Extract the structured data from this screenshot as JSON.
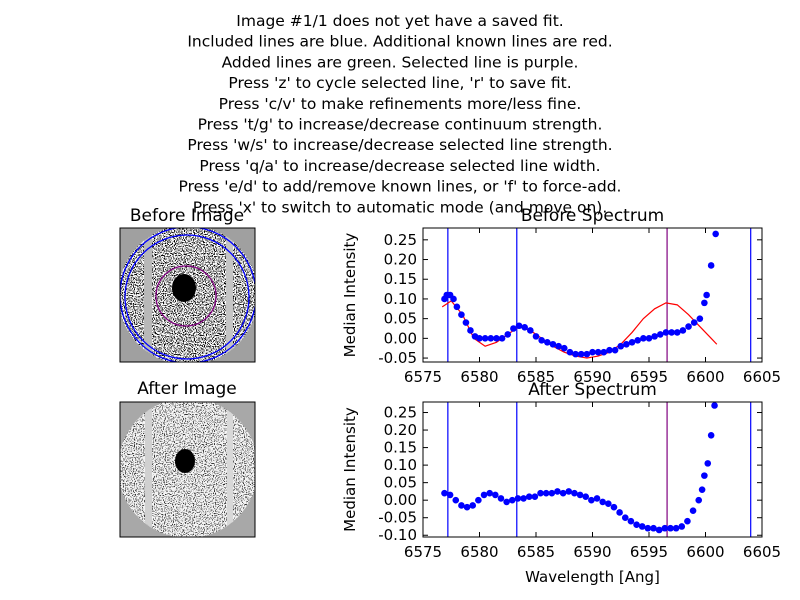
{
  "instructions": [
    "Image #1/1 does not yet have a saved fit.",
    "Included lines are blue. Additional known lines are red.",
    "Added lines are green. Selected line is purple.",
    "Press 'z' to cycle selected line, 'r' to save fit.",
    "Press 'c/v' to make refinements more/less fine.",
    "Press 't/g' to increase/decrease continuum strength.",
    "Press 'w/s' to increase/decrease selected line strength.",
    "Press 'q/a' to increase/decrease selected line width.",
    "Press 'e/d' to add/remove known lines, or 'f' to force-add.",
    "Press 'x' to switch to automatic mode (and move on)."
  ],
  "images": [
    {
      "title": "Before Image"
    },
    {
      "title": "After Image"
    }
  ],
  "chart_data": [
    {
      "type": "scatter",
      "title": "Before Spectrum",
      "ylabel": "Median Intensity",
      "xlim": [
        6575,
        6605
      ],
      "xticks": [
        6575,
        6580,
        6585,
        6590,
        6595,
        6600,
        6605
      ],
      "ylim": [
        -0.06,
        0.28
      ],
      "yticks": [
        -0.05,
        {
          "value": 0,
          "label": "0.00"
        },
        0.05,
        {
          "value": 0.1,
          "label": "0.10"
        },
        0.15,
        {
          "value": 0.2,
          "label": "0.20"
        },
        0.25
      ],
      "vlines": [
        {
          "x": 6577.2,
          "color": "#0000ff"
        },
        {
          "x": 6583.3,
          "color": "#0000ff"
        },
        {
          "x": 6596.6,
          "color": "#800080"
        },
        {
          "x": 6604.0,
          "color": "#0000ff"
        }
      ],
      "points": {
        "color": "#0000ff",
        "x": [
          6576.9,
          6577.1,
          6577.4,
          6577.7,
          6578.0,
          6578.4,
          6578.8,
          6579.2,
          6579.6,
          6580.0,
          6580.5,
          6581.0,
          6581.5,
          6582.0,
          6582.5,
          6583.0,
          6583.5,
          6584.0,
          6584.5,
          6585.0,
          6585.5,
          6586.0,
          6586.5,
          6587.0,
          6587.5,
          6588.0,
          6588.5,
          6589.0,
          6589.5,
          6590.0,
          6590.5,
          6591.0,
          6591.5,
          6592.0,
          6592.5,
          6593.0,
          6593.5,
          6594.0,
          6594.5,
          6595.0,
          6595.5,
          6596.0,
          6596.5,
          6597.0,
          6597.5,
          6598.0,
          6598.5,
          6599.0,
          6599.5,
          6599.9,
          6600.1,
          6600.5,
          6600.9
        ],
        "y": [
          0.1,
          0.11,
          0.11,
          0.1,
          0.08,
          0.06,
          0.04,
          0.02,
          0.005,
          0,
          0,
          0,
          0,
          0,
          0.01,
          0.025,
          0.032,
          0.028,
          0.02,
          0.005,
          -0.005,
          -0.01,
          -0.015,
          -0.02,
          -0.025,
          -0.035,
          -0.04,
          -0.04,
          -0.04,
          -0.035,
          -0.035,
          -0.035,
          -0.03,
          -0.03,
          -0.02,
          -0.015,
          -0.01,
          -0.005,
          0,
          0,
          0.005,
          0.01,
          0.015,
          0.015,
          0.015,
          0.02,
          0.03,
          0.04,
          0.05,
          0.09,
          0.11,
          0.185,
          0.265
        ]
      },
      "model": {
        "color": "#ff0000",
        "x": [
          6576.7,
          6577.5,
          6578.5,
          6579.5,
          6580.5,
          6581.5,
          6582.5,
          6583.5,
          6584.5,
          6585.5,
          6586.5,
          6587.5,
          6588.5,
          6589.5,
          6590.5,
          6591.5,
          6592.5,
          6593.5,
          6594.5,
          6595.5,
          6596.5,
          6597.5,
          6598.5,
          6599.5,
          6600.5,
          6601.0
        ],
        "y": [
          0.08,
          0.095,
          0.06,
          0,
          -0.02,
          -0.01,
          0.01,
          0.03,
          0.02,
          0,
          -0.02,
          -0.035,
          -0.045,
          -0.05,
          -0.045,
          -0.035,
          -0.015,
          0.015,
          0.05,
          0.075,
          0.09,
          0.085,
          0.06,
          0.03,
          0,
          -0.015
        ]
      }
    },
    {
      "type": "scatter",
      "title": "After Spectrum",
      "ylabel": "Median Intensity",
      "xlabel": "Wavelength [Ang]",
      "xlim": [
        6575,
        6605
      ],
      "xticks": [
        6575,
        6580,
        6585,
        6590,
        6595,
        6600,
        6605
      ],
      "ylim": [
        -0.105,
        0.28
      ],
      "yticks": [
        {
          "value": -0.1,
          "label": "-0.10"
        },
        -0.05,
        {
          "value": 0,
          "label": "0.00"
        },
        0.05,
        {
          "value": 0.1,
          "label": "0.10"
        },
        0.15,
        {
          "value": 0.2,
          "label": "0.20"
        },
        0.25
      ],
      "vlines": [
        {
          "x": 6577.2,
          "color": "#0000ff"
        },
        {
          "x": 6583.3,
          "color": "#0000ff"
        },
        {
          "x": 6596.6,
          "color": "#800080"
        },
        {
          "x": 6604.0,
          "color": "#0000ff"
        }
      ],
      "points": {
        "color": "#0000ff",
        "x": [
          6576.9,
          6577.4,
          6577.9,
          6578.4,
          6578.9,
          6579.4,
          6579.9,
          6580.4,
          6580.9,
          6581.4,
          6581.9,
          6582.4,
          6582.9,
          6583.4,
          6583.9,
          6584.4,
          6584.9,
          6585.4,
          6585.9,
          6586.4,
          6586.9,
          6587.4,
          6587.9,
          6588.4,
          6588.9,
          6589.4,
          6589.9,
          6590.4,
          6590.9,
          6591.4,
          6591.9,
          6592.4,
          6592.9,
          6593.4,
          6593.9,
          6594.4,
          6594.9,
          6595.4,
          6595.9,
          6596.4,
          6596.9,
          6597.4,
          6597.9,
          6598.4,
          6598.9,
          6599.4,
          6599.7,
          6599.9,
          6600.2,
          6600.5,
          6600.8
        ],
        "y": [
          0.02,
          0.015,
          0,
          -0.015,
          -0.02,
          -0.015,
          0,
          0.015,
          0.02,
          0.015,
          0.005,
          -0.005,
          0,
          0.005,
          0.005,
          0.01,
          0.01,
          0.02,
          0.02,
          0.02,
          0.025,
          0.02,
          0.025,
          0.02,
          0.015,
          0.01,
          0,
          0.005,
          -0.005,
          -0.01,
          -0.02,
          -0.035,
          -0.05,
          -0.06,
          -0.07,
          -0.075,
          -0.08,
          -0.08,
          -0.085,
          -0.08,
          -0.08,
          -0.08,
          -0.075,
          -0.06,
          -0.03,
          0,
          0.03,
          0.07,
          0.105,
          0.185,
          0.27
        ]
      }
    }
  ]
}
